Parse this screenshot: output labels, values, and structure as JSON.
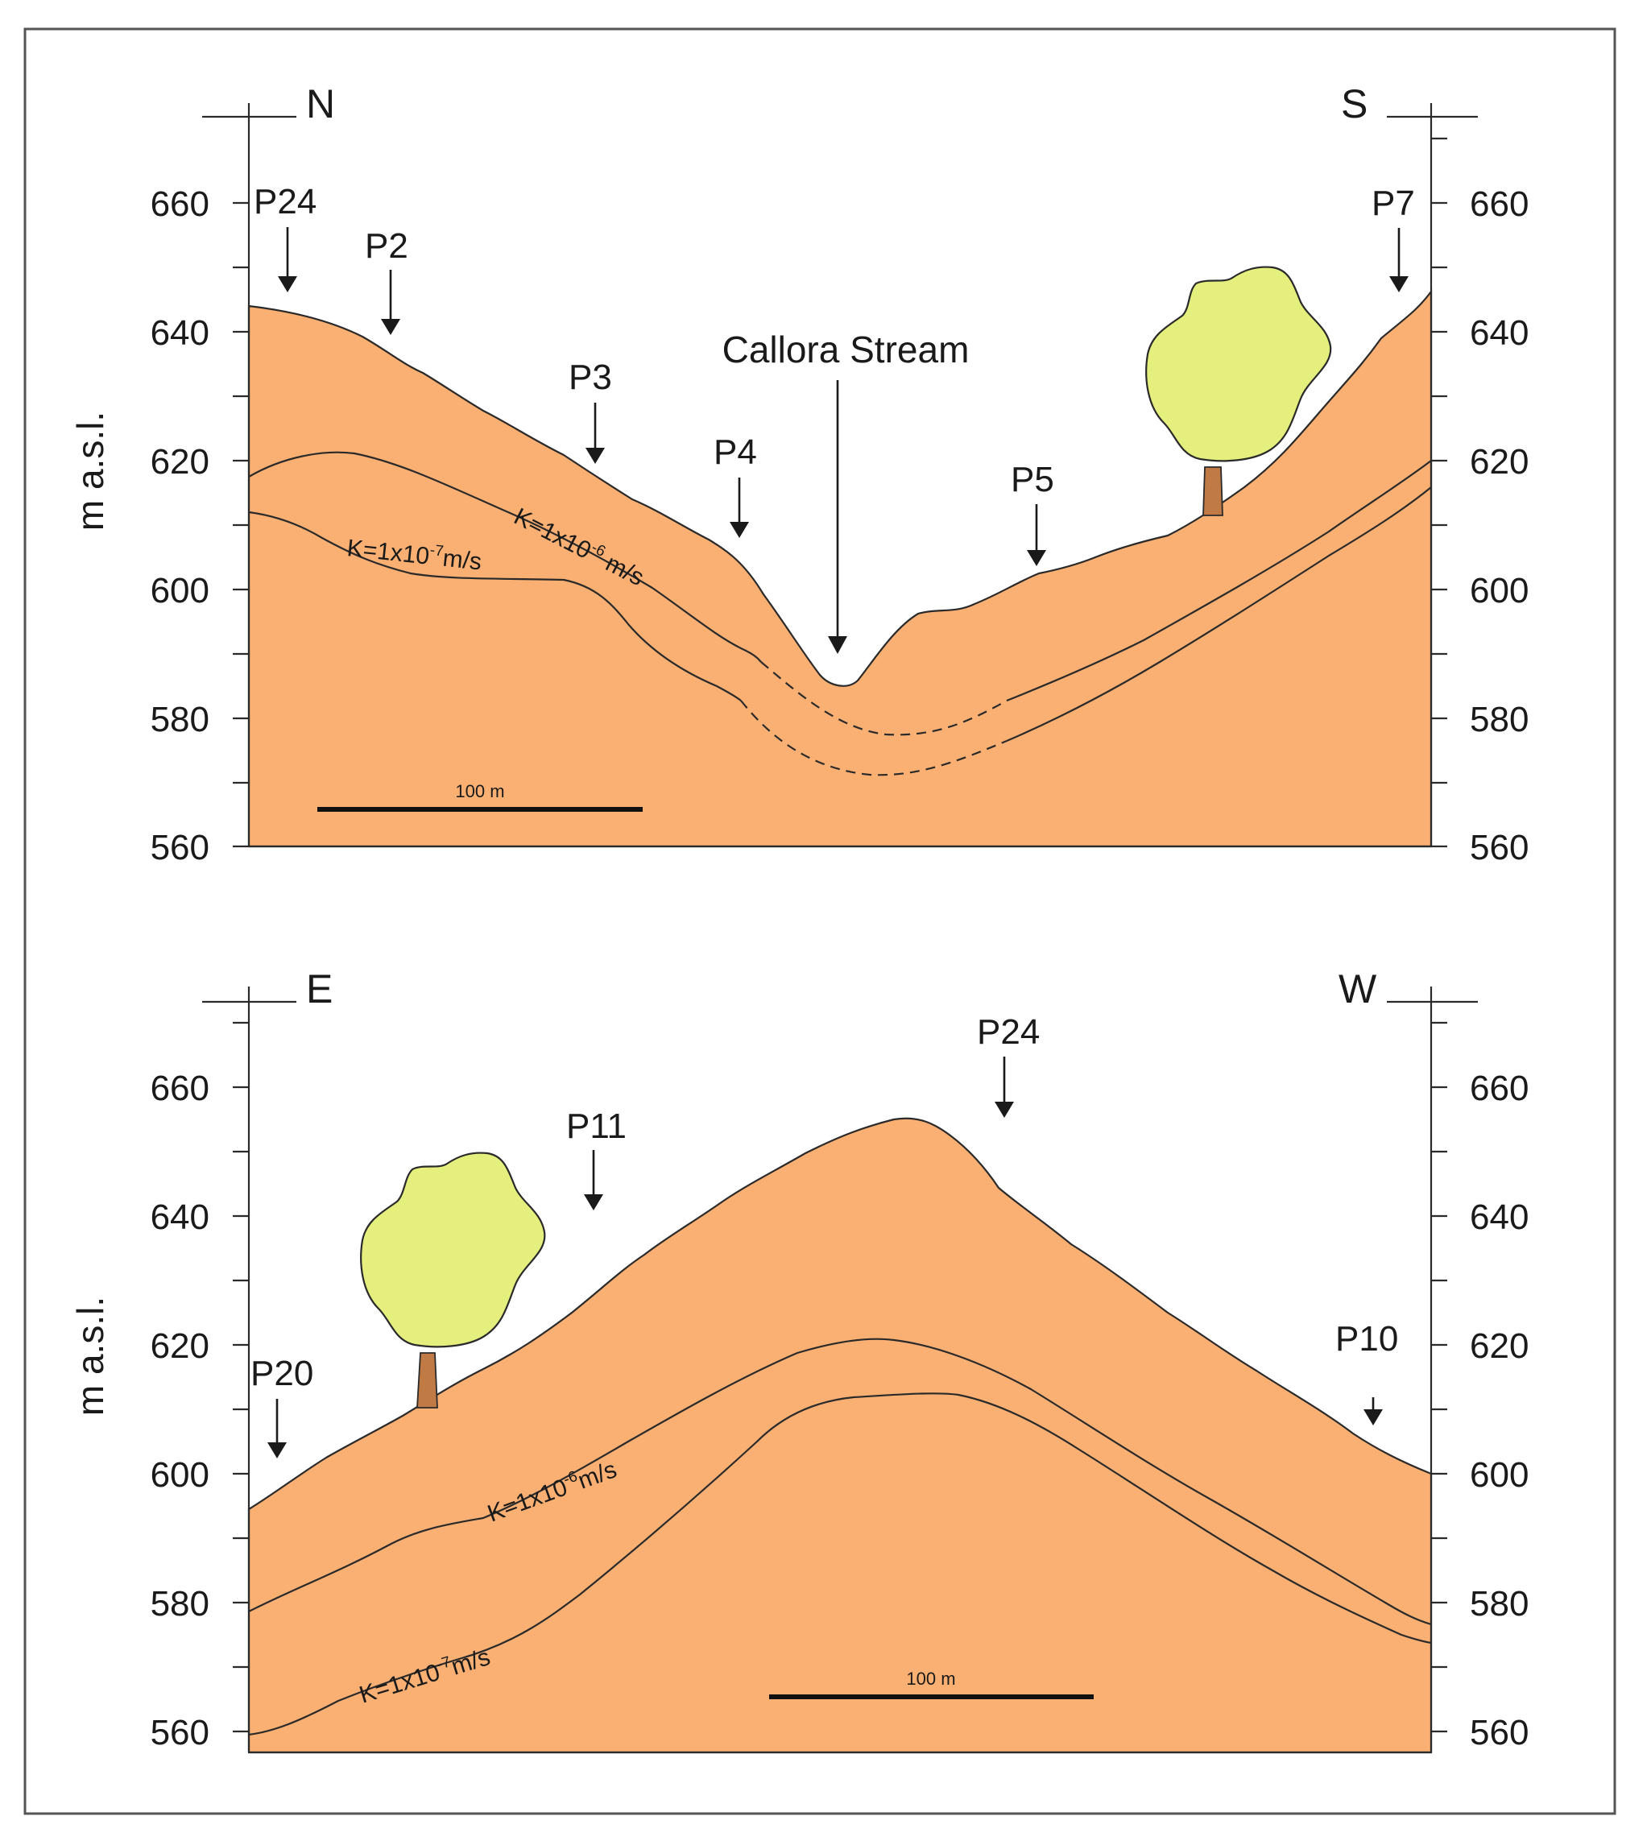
{
  "panels": [
    {
      "id": "ns",
      "dir_left": "N",
      "dir_right": "S",
      "ylabel": "m a.s.l.",
      "y_ticks": [
        "660",
        "640",
        "620",
        "600",
        "580",
        "560"
      ],
      "points": [
        "P24",
        "P2",
        "P3",
        "P4",
        "P5",
        "P7"
      ],
      "feature": "Callora Stream",
      "k_upper": {
        "text": "K=1x10",
        "exp": "-6",
        "unit": " m/s"
      },
      "k_lower": {
        "text": "K=1x10",
        "exp": "-7",
        "unit": "m/s"
      },
      "scale": "100 m"
    },
    {
      "id": "ew",
      "dir_left": "E",
      "dir_right": "W",
      "ylabel": "m a.s.l.",
      "y_ticks": [
        "660",
        "640",
        "620",
        "600",
        "580",
        "560"
      ],
      "points": [
        "P20",
        "P11",
        "P24",
        "P10"
      ],
      "k_upper": {
        "text": "K=1x10",
        "exp": "-6",
        "unit": "m/s"
      },
      "k_lower": {
        "text": "K=1x10",
        "exp": "-7",
        "unit": "m/s"
      },
      "scale": "100 m"
    }
  ],
  "colors": {
    "soil": "#fbb073",
    "tree_crown": "#e5ef7e",
    "tree_trunk": "#c07a45",
    "frame": "#555555"
  }
}
